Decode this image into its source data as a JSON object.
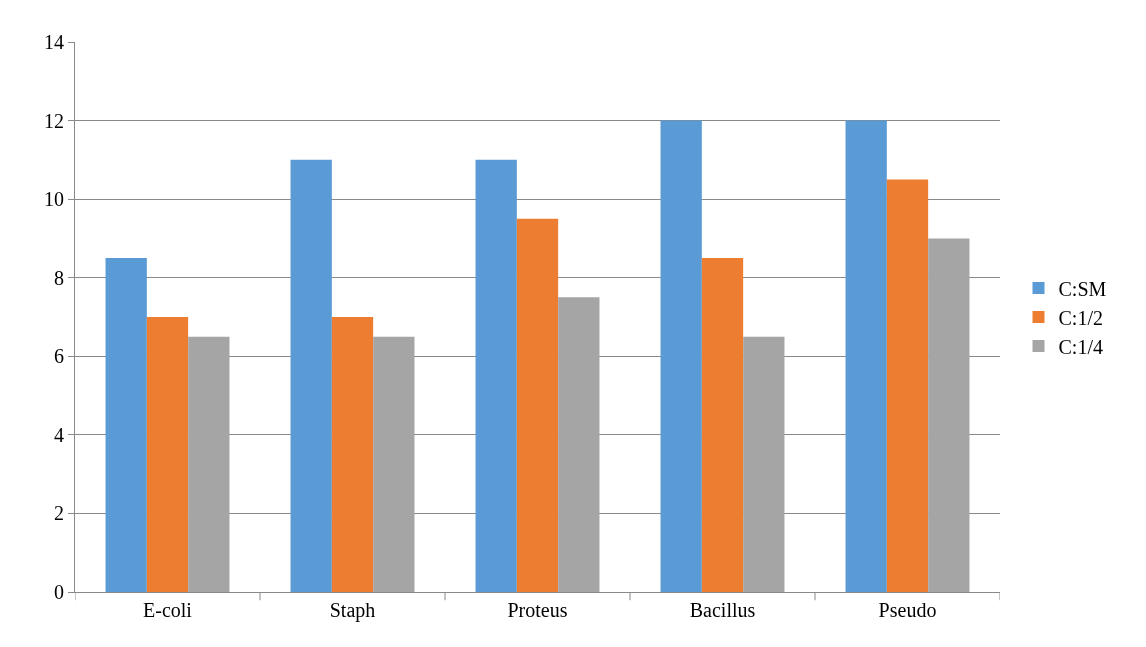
{
  "chart_data": {
    "type": "bar",
    "categories": [
      "E-coli",
      "Staph",
      "Proteus",
      "Bacillus",
      "Pseudo"
    ],
    "series": [
      {
        "name": "C:SM",
        "color": "#5b9bd5",
        "values": [
          8.5,
          11,
          11,
          12,
          12
        ]
      },
      {
        "name": "C:1/2",
        "color": "#ed7d31",
        "values": [
          7,
          7,
          9.5,
          8.5,
          10.5
        ]
      },
      {
        "name": "C:1/4",
        "color": "#a5a5a5",
        "values": [
          6.5,
          6.5,
          7.5,
          6.5,
          9
        ]
      }
    ],
    "ylim": [
      0,
      14
    ],
    "yticks": [
      0,
      2,
      4,
      6,
      8,
      10,
      12,
      14
    ],
    "grid": "y",
    "legend": "right"
  }
}
